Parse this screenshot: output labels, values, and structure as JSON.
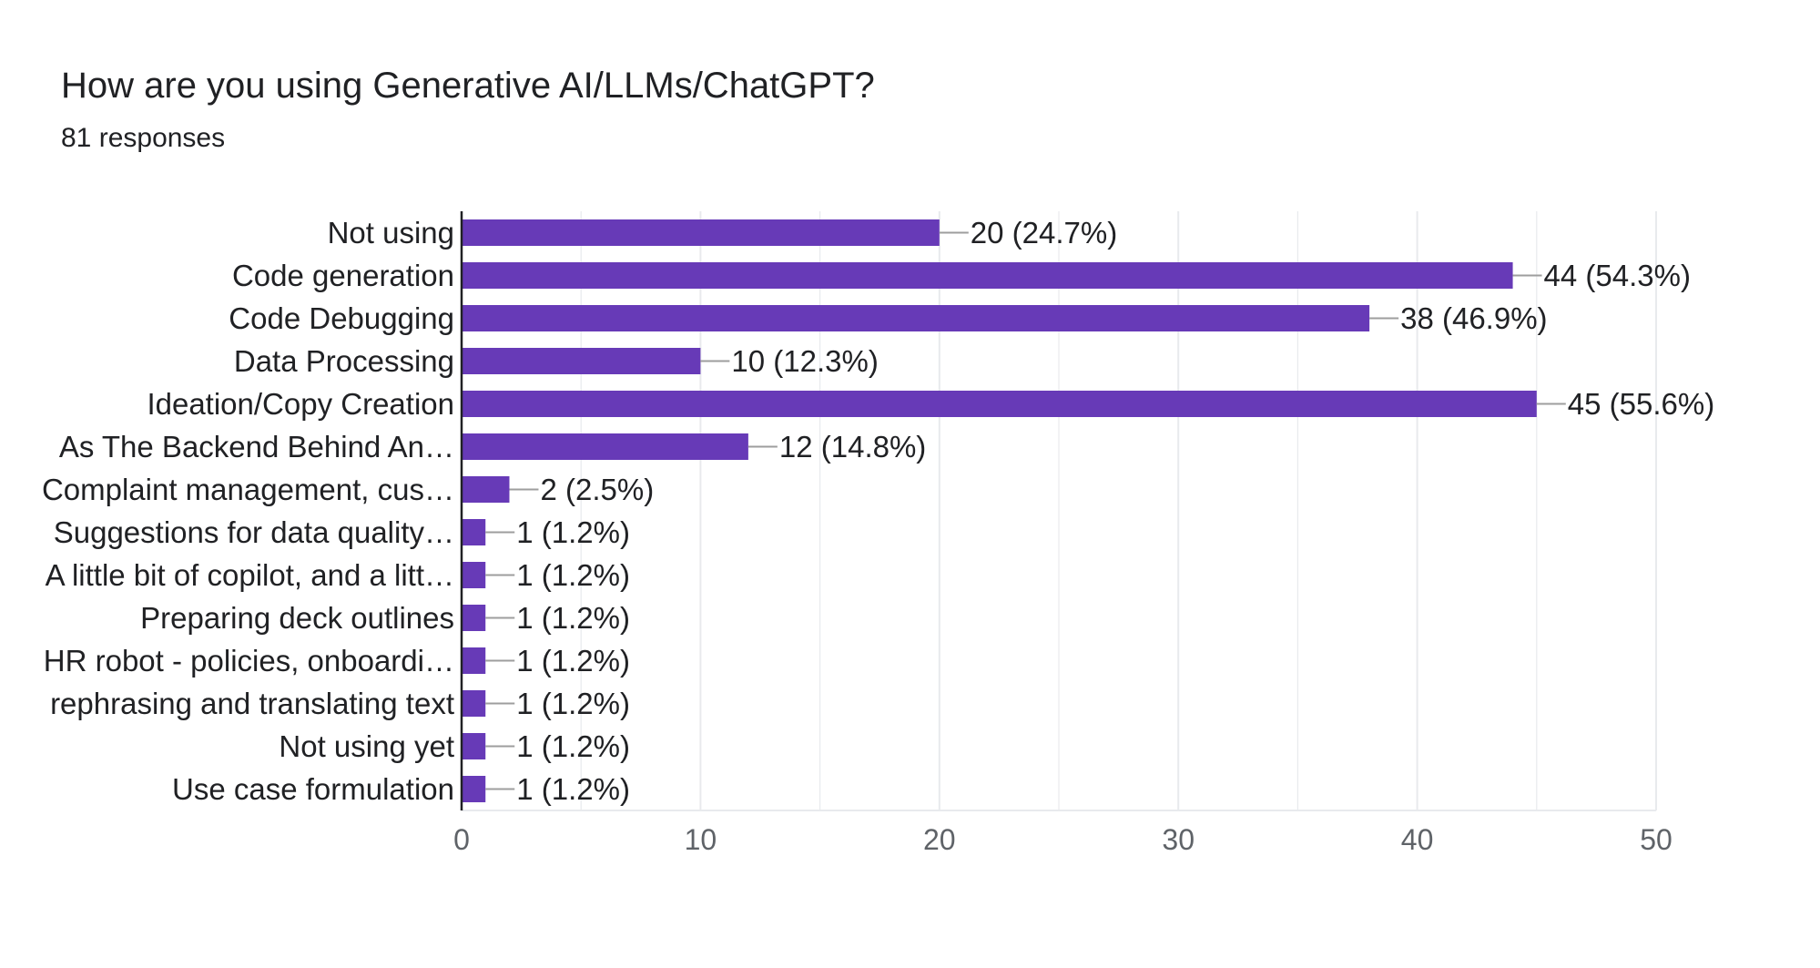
{
  "header": {
    "title": "How are you using Generative AI/LLMs/ChatGPT?",
    "responses": "81 responses"
  },
  "colors": {
    "bar": "#673ab7",
    "grid": "#e8eaed",
    "axis": "#202124",
    "connector": "#9e9e9e"
  },
  "chart_data": {
    "type": "bar",
    "orientation": "horizontal",
    "title": "How are you using Generative AI/LLMs/ChatGPT?",
    "subtitle": "81 responses",
    "xlabel": "",
    "ylabel": "",
    "xlim": [
      0,
      50
    ],
    "ticks": [
      0,
      10,
      20,
      30,
      40,
      50
    ],
    "grid": true,
    "categories": [
      "Not using",
      "Code generation",
      "Code Debugging",
      "Data Processing",
      "Ideation/Copy Creation",
      "As The Backend Behind An…",
      "Complaint management, cus…",
      "Suggestions for data quality…",
      "A little bit of copilot, and a litt…",
      "Preparing deck outlines",
      "HR robot - policies, onboardi…",
      "rephrasing and translating text",
      "Not using yet",
      "Use case formulation"
    ],
    "values": [
      20,
      44,
      38,
      10,
      45,
      12,
      2,
      1,
      1,
      1,
      1,
      1,
      1,
      1
    ],
    "data_labels": [
      "20 (24.7%)",
      "44 (54.3%)",
      "38 (46.9%)",
      "10 (12.3%)",
      "45 (55.6%)",
      "12 (14.8%)",
      "2 (2.5%)",
      "1 (1.2%)",
      "1 (1.2%)",
      "1 (1.2%)",
      "1 (1.2%)",
      "1 (1.2%)",
      "1 (1.2%)",
      "1 (1.2%)"
    ]
  }
}
